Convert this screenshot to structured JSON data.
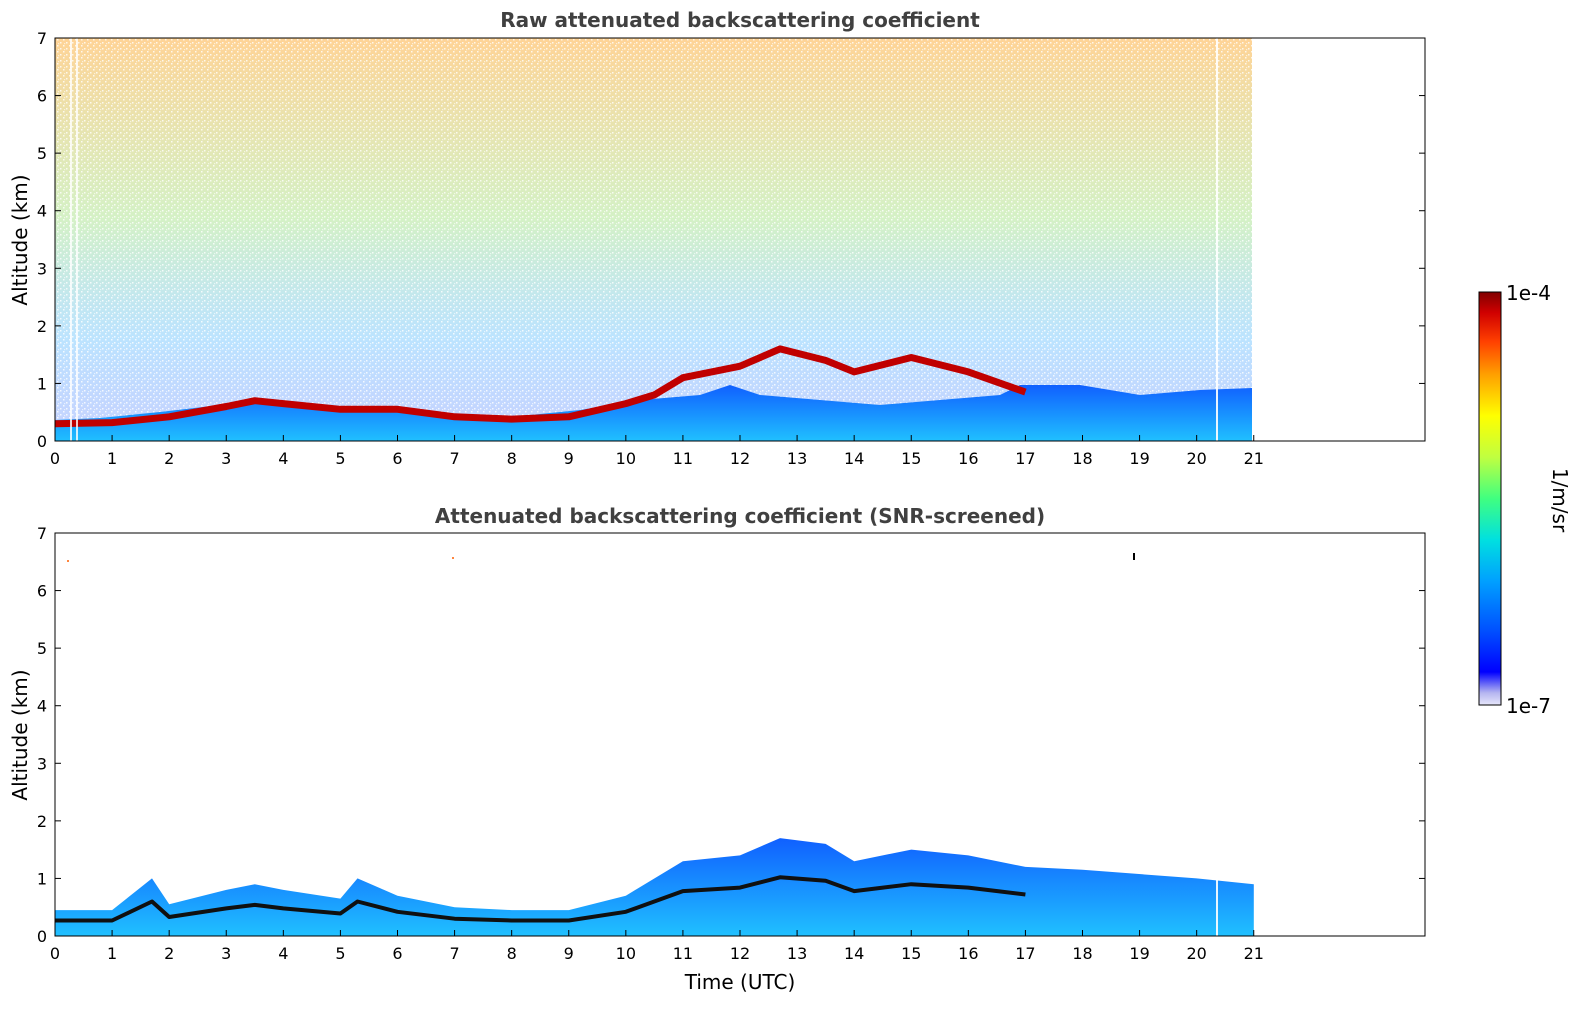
{
  "chart_data": [
    {
      "type": "heatmap",
      "title": "Raw attenuated backscattering coefficient",
      "xlabel": "",
      "ylabel": "Altitude (km)",
      "xlim": [
        0,
        24
      ],
      "ylim": [
        0,
        7
      ],
      "xticks": [
        "0",
        "1",
        "2",
        "3",
        "4",
        "5",
        "6",
        "7",
        "8",
        "9",
        "10",
        "11",
        "12",
        "13",
        "14",
        "15",
        "16",
        "17",
        "18",
        "19",
        "20",
        "21"
      ],
      "yticks": [
        "0",
        "1",
        "2",
        "3",
        "4",
        "5",
        "6",
        "7"
      ],
      "data_extent_hours": 21,
      "layer_height_km": [
        [
          0,
          0.3
        ],
        [
          1,
          0.32
        ],
        [
          2,
          0.42
        ],
        [
          3,
          0.6
        ],
        [
          3.5,
          0.7
        ],
        [
          4,
          0.65
        ],
        [
          5,
          0.55
        ],
        [
          6,
          0.55
        ],
        [
          7,
          0.42
        ],
        [
          8,
          0.38
        ],
        [
          9,
          0.42
        ],
        [
          10,
          0.65
        ],
        [
          10.5,
          0.8
        ],
        [
          11,
          1.1
        ],
        [
          11.5,
          1.2
        ],
        [
          12,
          1.3
        ],
        [
          12.7,
          1.6
        ],
        [
          13.5,
          1.4
        ],
        [
          14,
          1.2
        ],
        [
          15,
          1.45
        ],
        [
          16,
          1.2
        ],
        [
          17,
          0.85
        ]
      ],
      "grid": false
    },
    {
      "type": "heatmap",
      "title": "Attenuated backscattering coefficient (SNR-screened)",
      "xlabel": "Time (UTC)",
      "ylabel": "Altitude (km)",
      "xlim": [
        0,
        24
      ],
      "ylim": [
        0,
        7
      ],
      "xticks": [
        "0",
        "1",
        "2",
        "3",
        "4",
        "5",
        "6",
        "7",
        "8",
        "9",
        "10",
        "11",
        "12",
        "13",
        "14",
        "15",
        "16",
        "17",
        "18",
        "19",
        "20",
        "21"
      ],
      "yticks": [
        "0",
        "1",
        "2",
        "3",
        "4",
        "5",
        "6",
        "7"
      ],
      "data_extent_hours": 21,
      "layer_top_km": [
        [
          0,
          0.45
        ],
        [
          1,
          0.45
        ],
        [
          1.7,
          1.0
        ],
        [
          2,
          0.55
        ],
        [
          3,
          0.8
        ],
        [
          3.5,
          0.9
        ],
        [
          4,
          0.8
        ],
        [
          5,
          0.65
        ],
        [
          5.3,
          1.0
        ],
        [
          6,
          0.7
        ],
        [
          7,
          0.5
        ],
        [
          8,
          0.45
        ],
        [
          9,
          0.45
        ],
        [
          10,
          0.7
        ],
        [
          11,
          1.3
        ],
        [
          12,
          1.4
        ],
        [
          12.7,
          1.7
        ],
        [
          13.5,
          1.6
        ],
        [
          14,
          1.3
        ],
        [
          15,
          1.5
        ],
        [
          16,
          1.4
        ],
        [
          17,
          1.2
        ],
        [
          18,
          1.15
        ],
        [
          20,
          1.0
        ],
        [
          21,
          0.9
        ]
      ],
      "grid": false
    }
  ],
  "colorbar": {
    "max_label": "1e-4",
    "min_label": "1e-7",
    "unit_label": "1/m/sr",
    "colors": [
      "#e6e6fa",
      "#b4b4f0",
      "#0000ff",
      "#0050ff",
      "#00a0ff",
      "#00e0e0",
      "#40ff80",
      "#c0ff40",
      "#ffff00",
      "#ffa000",
      "#ff4000",
      "#d00000",
      "#800000"
    ]
  }
}
